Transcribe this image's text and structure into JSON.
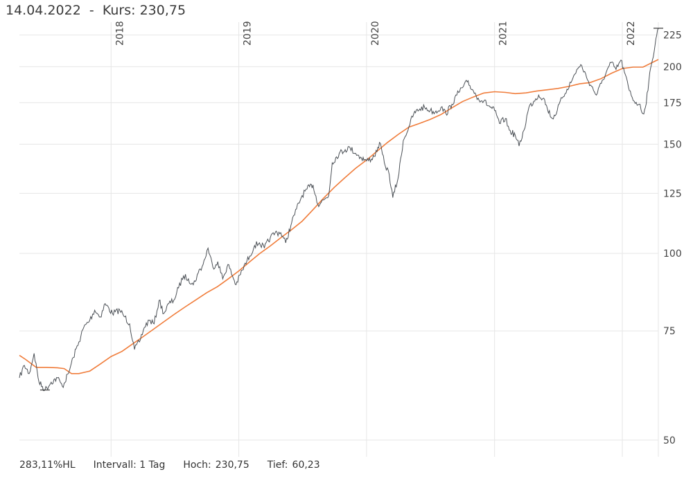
{
  "header": {
    "date": "14.04.2022",
    "separator": "-",
    "price_label": "Kurs:",
    "price_value": "230,75"
  },
  "footer": {
    "hl": "283,11%HL",
    "interval": "Intervall: 1 Tag",
    "high_label": "Hoch:",
    "high_value": "230,75",
    "low_label": "Tief:",
    "low_value": "60,23"
  },
  "chart_data": {
    "type": "line",
    "scale": "log",
    "xlim": [
      "2017-04-14",
      "2022-04-14"
    ],
    "ylim": [
      47,
      236
    ],
    "y_ticks": [
      50,
      75,
      100,
      125,
      150,
      175,
      200,
      225
    ],
    "y_tick_labels": [
      "50",
      "75",
      "100",
      "125",
      "150",
      "175",
      "200",
      "225"
    ],
    "x_ticks": [
      "2018-01-01",
      "2019-01-01",
      "2020-01-01",
      "2021-01-01",
      "2022-01-01"
    ],
    "x_tick_labels": [
      "2018",
      "2019",
      "2020",
      "2021",
      "2022"
    ],
    "grid": true,
    "colors": {
      "price": "#4a4f55",
      "average": "#f07c3a",
      "grid": "#e6e6e6"
    },
    "high": {
      "date": "2022-04-14",
      "value": 230.75
    },
    "low": {
      "date": "2017-06-26",
      "value": 60.23
    },
    "series": [
      {
        "role": "price",
        "points": [
          [
            "2017-04-14",
            63
          ],
          [
            "2017-04-28",
            66
          ],
          [
            "2017-05-12",
            64
          ],
          [
            "2017-05-26",
            69
          ],
          [
            "2017-06-09",
            62
          ],
          [
            "2017-06-26",
            60.23
          ],
          [
            "2017-07-14",
            62
          ],
          [
            "2017-08-01",
            63
          ],
          [
            "2017-08-15",
            61
          ],
          [
            "2017-09-01",
            64
          ],
          [
            "2017-09-15",
            68
          ],
          [
            "2017-10-01",
            72
          ],
          [
            "2017-10-15",
            76
          ],
          [
            "2017-11-01",
            78
          ],
          [
            "2017-11-15",
            81
          ],
          [
            "2017-12-01",
            79
          ],
          [
            "2017-12-15",
            83
          ],
          [
            "2018-01-05",
            80
          ],
          [
            "2018-01-26",
            81
          ],
          [
            "2018-02-09",
            79
          ],
          [
            "2018-02-23",
            77
          ],
          [
            "2018-03-09",
            70
          ],
          [
            "2018-03-23",
            72
          ],
          [
            "2018-04-06",
            76
          ],
          [
            "2018-04-20",
            78
          ],
          [
            "2018-05-04",
            77
          ],
          [
            "2018-05-18",
            84
          ],
          [
            "2018-06-01",
            80
          ],
          [
            "2018-06-15",
            83
          ],
          [
            "2018-06-29",
            84
          ],
          [
            "2018-07-13",
            88
          ],
          [
            "2018-07-27",
            92
          ],
          [
            "2018-08-10",
            91
          ],
          [
            "2018-08-24",
            89
          ],
          [
            "2018-09-07",
            93
          ],
          [
            "2018-09-21",
            96
          ],
          [
            "2018-10-05",
            102
          ],
          [
            "2018-10-19",
            95
          ],
          [
            "2018-11-02",
            97
          ],
          [
            "2018-11-16",
            91
          ],
          [
            "2018-12-01",
            96
          ],
          [
            "2018-12-24",
            89
          ],
          [
            "2019-01-11",
            94
          ],
          [
            "2019-02-01",
            99
          ],
          [
            "2019-02-15",
            103
          ],
          [
            "2019-03-01",
            104
          ],
          [
            "2019-03-15",
            102
          ],
          [
            "2019-04-01",
            106
          ],
          [
            "2019-04-15",
            108
          ],
          [
            "2019-05-01",
            108
          ],
          [
            "2019-05-15",
            104
          ],
          [
            "2019-06-01",
            112
          ],
          [
            "2019-06-15",
            118
          ],
          [
            "2019-07-01",
            124
          ],
          [
            "2019-07-15",
            127
          ],
          [
            "2019-08-01",
            129
          ],
          [
            "2019-08-15",
            120
          ],
          [
            "2019-09-01",
            122
          ],
          [
            "2019-09-15",
            124
          ],
          [
            "2019-09-25",
            140
          ],
          [
            "2019-10-15",
            145
          ],
          [
            "2019-11-01",
            147
          ],
          [
            "2019-11-15",
            148
          ],
          [
            "2019-12-01",
            145
          ],
          [
            "2019-12-15",
            143
          ],
          [
            "2020-01-01",
            141
          ],
          [
            "2020-01-15",
            142
          ],
          [
            "2020-01-31",
            146
          ],
          [
            "2020-02-07",
            151
          ],
          [
            "2020-02-21",
            140
          ],
          [
            "2020-03-06",
            134
          ],
          [
            "2020-03-16",
            123
          ],
          [
            "2020-03-31",
            132
          ],
          [
            "2020-04-15",
            152
          ],
          [
            "2020-05-01",
            160
          ],
          [
            "2020-05-15",
            168
          ],
          [
            "2020-06-01",
            171
          ],
          [
            "2020-06-15",
            172
          ],
          [
            "2020-07-01",
            170
          ],
          [
            "2020-07-15",
            169
          ],
          [
            "2020-08-01",
            172
          ],
          [
            "2020-08-15",
            168
          ],
          [
            "2020-09-01",
            174
          ],
          [
            "2020-09-15",
            180
          ],
          [
            "2020-10-01",
            185
          ],
          [
            "2020-10-15",
            189
          ],
          [
            "2020-11-01",
            183
          ],
          [
            "2020-11-15",
            178
          ],
          [
            "2020-12-01",
            176
          ],
          [
            "2020-12-15",
            173
          ],
          [
            "2021-01-01",
            170
          ],
          [
            "2021-01-15",
            162
          ],
          [
            "2021-02-01",
            165
          ],
          [
            "2021-02-12",
            158
          ],
          [
            "2021-03-01",
            155
          ],
          [
            "2021-03-12",
            149
          ],
          [
            "2021-03-26",
            158
          ],
          [
            "2021-04-09",
            172
          ],
          [
            "2021-04-23",
            176
          ],
          [
            "2021-05-07",
            180
          ],
          [
            "2021-05-21",
            178
          ],
          [
            "2021-06-01",
            171
          ],
          [
            "2021-06-15",
            165
          ],
          [
            "2021-06-29",
            170
          ],
          [
            "2021-07-13",
            178
          ],
          [
            "2021-07-27",
            184
          ],
          [
            "2021-08-10",
            190
          ],
          [
            "2021-08-24",
            198
          ],
          [
            "2021-09-07",
            201
          ],
          [
            "2021-09-21",
            192
          ],
          [
            "2021-10-05",
            186
          ],
          [
            "2021-10-19",
            180
          ],
          [
            "2021-11-02",
            188
          ],
          [
            "2021-11-16",
            196
          ],
          [
            "2021-11-30",
            203
          ],
          [
            "2021-12-14",
            198
          ],
          [
            "2021-12-28",
            205
          ],
          [
            "2022-01-07",
            196
          ],
          [
            "2022-01-21",
            183
          ],
          [
            "2022-02-04",
            176
          ],
          [
            "2022-02-18",
            174
          ],
          [
            "2022-03-01",
            168
          ],
          [
            "2022-03-08",
            172
          ],
          [
            "2022-03-18",
            190
          ],
          [
            "2022-03-28",
            205
          ],
          [
            "2022-04-07",
            222
          ],
          [
            "2022-04-14",
            230.75
          ]
        ]
      },
      {
        "role": "average",
        "points": [
          [
            "2017-04-14",
            68.5
          ],
          [
            "2017-05-01",
            67.5
          ],
          [
            "2017-06-01",
            65.5
          ],
          [
            "2017-07-01",
            65.5
          ],
          [
            "2017-08-01",
            65.4
          ],
          [
            "2017-08-20",
            65.2
          ],
          [
            "2017-09-10",
            64
          ],
          [
            "2017-10-01",
            64
          ],
          [
            "2017-11-01",
            64.6
          ],
          [
            "2017-12-01",
            66.3
          ],
          [
            "2018-01-01",
            68.2
          ],
          [
            "2018-02-01",
            69.5
          ],
          [
            "2018-03-01",
            71.3
          ],
          [
            "2018-04-01",
            73.3
          ],
          [
            "2018-05-01",
            75.4
          ],
          [
            "2018-06-01",
            77.6
          ],
          [
            "2018-07-01",
            79.8
          ],
          [
            "2018-08-01",
            82
          ],
          [
            "2018-09-01",
            84.2
          ],
          [
            "2018-10-01",
            86.4
          ],
          [
            "2018-11-01",
            88.4
          ],
          [
            "2018-12-01",
            90.9
          ],
          [
            "2019-01-01",
            93.7
          ],
          [
            "2019-02-01",
            96.9
          ],
          [
            "2019-03-01",
            99.9
          ],
          [
            "2019-04-01",
            102.8
          ],
          [
            "2019-05-01",
            106
          ],
          [
            "2019-06-01",
            109.2
          ],
          [
            "2019-07-01",
            112.7
          ],
          [
            "2019-08-01",
            117.6
          ],
          [
            "2019-09-01",
            122.9
          ],
          [
            "2019-10-01",
            127.8
          ],
          [
            "2019-11-01",
            132.6
          ],
          [
            "2019-12-01",
            137.2
          ],
          [
            "2020-01-01",
            141.4
          ],
          [
            "2020-02-01",
            146.3
          ],
          [
            "2020-03-01",
            151
          ],
          [
            "2020-04-01",
            155.6
          ],
          [
            "2020-05-01",
            159.8
          ],
          [
            "2020-06-01",
            162.1
          ],
          [
            "2020-07-01",
            164.5
          ],
          [
            "2020-08-01",
            167.5
          ],
          [
            "2020-09-01",
            171.7
          ],
          [
            "2020-10-01",
            175.7
          ],
          [
            "2020-11-01",
            178.7
          ],
          [
            "2020-12-01",
            181.4
          ],
          [
            "2021-01-01",
            182.3
          ],
          [
            "2021-02-01",
            181.8
          ],
          [
            "2021-03-01",
            181
          ],
          [
            "2021-04-01",
            181.5
          ],
          [
            "2021-05-01",
            182.7
          ],
          [
            "2021-06-01",
            183.6
          ],
          [
            "2021-07-01",
            184.5
          ],
          [
            "2021-08-01",
            185.9
          ],
          [
            "2021-09-01",
            187.7
          ],
          [
            "2021-10-01",
            188.6
          ],
          [
            "2021-11-01",
            191.3
          ],
          [
            "2021-12-01",
            195.2
          ],
          [
            "2022-01-01",
            198.7
          ],
          [
            "2022-02-01",
            199.7
          ],
          [
            "2022-03-01",
            199.7
          ],
          [
            "2022-04-14",
            205.4
          ]
        ]
      }
    ]
  }
}
